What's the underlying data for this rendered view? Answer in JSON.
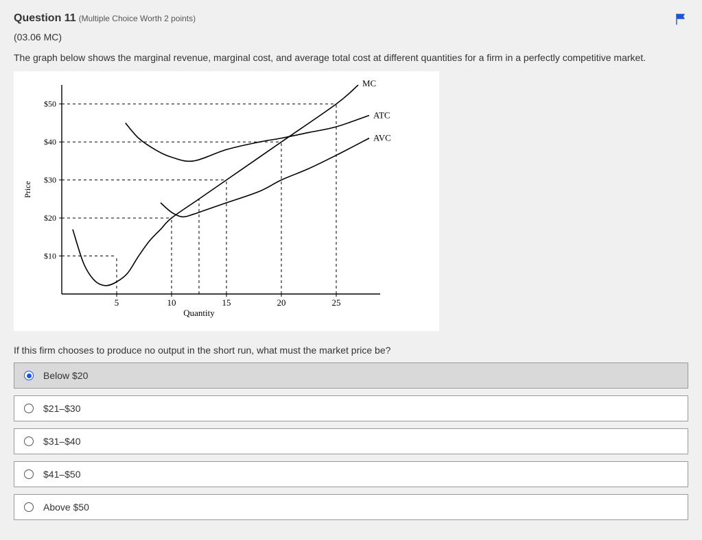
{
  "question_number_label": "Question 11",
  "worth_label": "(Multiple Choice Worth 2 points)",
  "question_code": "(03.06 MC)",
  "prompt_intro": "The graph below shows the marginal revenue, marginal cost, and average total cost at different quantities for a firm in a perfectly competitive market.",
  "follow_prompt": "If this firm chooses to produce no output in the short run, what must the market price be?",
  "choices": [
    {
      "label": "Below $20",
      "selected": true
    },
    {
      "label": "$21–$30",
      "selected": false
    },
    {
      "label": "$31–$40",
      "selected": false
    },
    {
      "label": "$41–$50",
      "selected": false
    },
    {
      "label": "Above $50",
      "selected": false
    }
  ],
  "chart": {
    "type": "economics-cost-curves",
    "y_axis": {
      "label": "Price",
      "ticks": [
        10,
        20,
        30,
        40,
        50
      ],
      "tick_labels": [
        "$10",
        "$20",
        "$30",
        "$40",
        "$50"
      ],
      "ylim": [
        0,
        55
      ],
      "label_fontsize": 12
    },
    "x_axis": {
      "label": "Quantity",
      "ticks": [
        5,
        10,
        15,
        20,
        25
      ],
      "tick_labels": [
        "5",
        "10",
        "15",
        "20",
        "25"
      ],
      "xlim": [
        0,
        30
      ],
      "label_fontsize": 13
    },
    "axis_color": "#000000",
    "curve_color": "#000000",
    "curve_width": 1.6,
    "gridlines": {
      "style": "dashed",
      "color": "#000000",
      "dash": "4 4"
    },
    "series_labels": {
      "MC": "MC",
      "ATC": "ATC",
      "AVC": "AVC"
    },
    "curves": {
      "MC": {
        "points": [
          [
            1,
            17
          ],
          [
            2,
            8
          ],
          [
            3,
            3.5
          ],
          [
            4,
            2.2
          ],
          [
            5,
            3.2
          ],
          [
            6,
            5.5
          ],
          [
            7,
            10
          ],
          [
            8,
            14
          ],
          [
            9,
            17
          ],
          [
            10,
            20
          ],
          [
            12.5,
            25
          ],
          [
            15,
            30
          ],
          [
            20,
            40
          ],
          [
            25,
            50
          ],
          [
            27,
            55
          ]
        ]
      },
      "ATC": {
        "points": [
          [
            5.8,
            45
          ],
          [
            7,
            41
          ],
          [
            8.5,
            38
          ],
          [
            10,
            36
          ],
          [
            12,
            35
          ],
          [
            15,
            38
          ],
          [
            18,
            40
          ],
          [
            20,
            41
          ],
          [
            22.5,
            42.5
          ],
          [
            25,
            44
          ],
          [
            28,
            47
          ]
        ]
      },
      "AVC": {
        "points": [
          [
            9,
            24
          ],
          [
            10,
            21.5
          ],
          [
            11,
            20.3
          ],
          [
            12,
            21
          ],
          [
            13,
            22
          ],
          [
            15,
            24
          ],
          [
            18,
            27
          ],
          [
            20,
            30
          ],
          [
            22.5,
            33
          ],
          [
            25,
            36.5
          ],
          [
            28,
            41
          ]
        ]
      }
    },
    "reference_lines": {
      "horizontal": [
        10,
        20,
        30,
        40,
        50
      ],
      "vertical_from_bottom": [
        {
          "x": 5,
          "to_y": 10
        },
        {
          "x": 10,
          "to_y": 20
        },
        {
          "x": 12.5,
          "to_y": 25
        },
        {
          "x": 15,
          "to_y": 30
        },
        {
          "x": 20,
          "to_y": 40
        },
        {
          "x": 25,
          "to_y": 50
        }
      ]
    },
    "background_color": "#ffffff"
  },
  "flag_icon_color": "#1a56db"
}
